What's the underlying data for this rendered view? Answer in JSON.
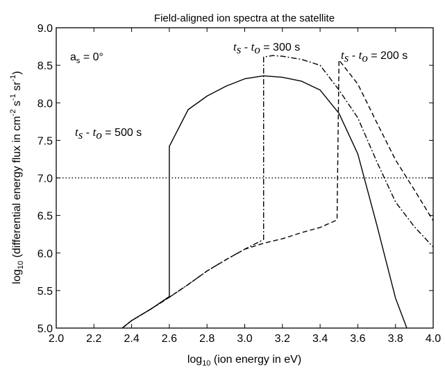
{
  "chart_data": {
    "type": "line",
    "title": "Field-aligned ion spectra at the satellite",
    "xlabel": {
      "main": "log",
      "sub": "10",
      "rest": " (ion energy in eV)"
    },
    "ylabel": {
      "main": "log",
      "sub": "10",
      "rest": " (differential energy flux in cm",
      "sup1": "-2",
      "mid1": " s",
      "sup2": "-1",
      "mid2": " sr",
      "sup3": "-1",
      "end": ")"
    },
    "xlim": [
      2.0,
      4.0
    ],
    "ylim": [
      5.0,
      9.0
    ],
    "xticks": [
      "2.0",
      "2.2",
      "2.4",
      "2.6",
      "2.8",
      "3.0",
      "3.2",
      "3.4",
      "3.6",
      "3.8",
      "4.0"
    ],
    "yticks": [
      "5.0",
      "5.5",
      "6.0",
      "6.5",
      "7.0",
      "7.5",
      "8.0",
      "8.5",
      "9.0"
    ],
    "reference_line": {
      "y": 7.0,
      "style": "dotted"
    },
    "annotations": {
      "angle": {
        "a": "a",
        "sub": "s",
        "rest": " = 0°"
      },
      "t500": {
        "t1": "t",
        "s1": "s",
        "dash": " - ",
        "t2": "t",
        "s2": "o",
        "val": " = 500 s"
      },
      "t300": {
        "t1": "t",
        "s1": "s",
        "dash": " - ",
        "t2": "t",
        "s2": "o",
        "val": " = 300 s"
      },
      "t200": {
        "t1": "t",
        "s1": "s",
        "dash": " - ",
        "t2": "t",
        "s2": "o",
        "val": " = 200 s"
      }
    },
    "series": [
      {
        "style": "solid",
        "x": [
          2.35,
          2.4,
          2.5,
          2.6,
          2.6,
          2.7,
          2.8,
          2.9,
          3.0,
          3.1,
          3.2,
          3.3,
          3.4,
          3.5,
          3.6,
          3.7,
          3.8,
          3.86
        ],
        "y": [
          5.0,
          5.1,
          5.25,
          5.42,
          7.42,
          7.91,
          8.09,
          8.22,
          8.32,
          8.36,
          8.34,
          8.29,
          8.17,
          7.86,
          7.32,
          6.38,
          5.4,
          5.0
        ]
      },
      {
        "style": "dashdot",
        "x": [
          2.35,
          2.4,
          2.5,
          2.6,
          2.7,
          2.8,
          2.9,
          3.0,
          3.1,
          3.1,
          3.15,
          3.2,
          3.3,
          3.4,
          3.5,
          3.6,
          3.7,
          3.8,
          3.9,
          4.0
        ],
        "y": [
          5.0,
          5.1,
          5.25,
          5.41,
          5.58,
          5.76,
          5.91,
          6.05,
          6.18,
          8.61,
          8.63,
          8.62,
          8.58,
          8.5,
          8.17,
          7.8,
          7.22,
          6.68,
          6.35,
          6.08
        ]
      },
      {
        "style": "dashed",
        "x": [
          2.35,
          2.4,
          2.5,
          2.6,
          2.7,
          2.8,
          2.9,
          3.0,
          3.1,
          3.2,
          3.3,
          3.4,
          3.49,
          3.5,
          3.6,
          3.7,
          3.8,
          3.9,
          4.0
        ],
        "y": [
          5.0,
          5.1,
          5.25,
          5.41,
          5.58,
          5.76,
          5.91,
          6.05,
          6.13,
          6.19,
          6.27,
          6.34,
          6.44,
          8.57,
          8.25,
          7.74,
          7.24,
          6.84,
          6.43
        ]
      }
    ]
  }
}
